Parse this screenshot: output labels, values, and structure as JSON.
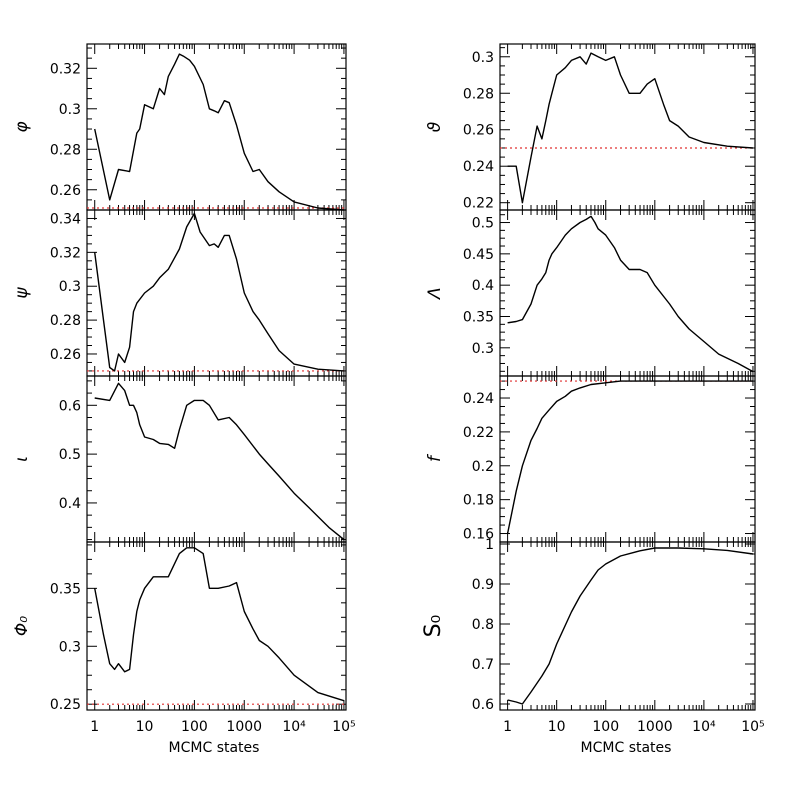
{
  "colors": {
    "series": "#000000",
    "reference": "#e03030",
    "axes": "#000000"
  },
  "chart_data": [
    {
      "type": "line",
      "id": "phi",
      "ylabel": "φ",
      "ylim": [
        0.25,
        0.332
      ],
      "yticks": [
        0.26,
        0.28,
        0.3,
        0.32
      ],
      "ytick_labels": [
        "0.26",
        "0.28",
        "0.3",
        "0.32"
      ],
      "reference_y": 0.251,
      "xscale": "log",
      "xlim": [
        0.7,
        110000
      ],
      "grid": false,
      "x": [
        1,
        2,
        3,
        5,
        7,
        8,
        10,
        15,
        20,
        25,
        30,
        40,
        50,
        60,
        80,
        100,
        150,
        200,
        250,
        300,
        400,
        500,
        700,
        1000,
        1500,
        2000,
        3000,
        5000,
        10000,
        30000,
        100000
      ],
      "y": [
        0.29,
        0.255,
        0.27,
        0.269,
        0.288,
        0.29,
        0.302,
        0.3,
        0.31,
        0.307,
        0.316,
        0.322,
        0.327,
        0.326,
        0.324,
        0.321,
        0.312,
        0.3,
        0.299,
        0.298,
        0.304,
        0.303,
        0.292,
        0.278,
        0.269,
        0.27,
        0.264,
        0.259,
        0.254,
        0.251,
        0.25
      ]
    },
    {
      "type": "line",
      "id": "psi",
      "ylabel": "ψ",
      "ylim": [
        0.247,
        0.345
      ],
      "yticks": [
        0.26,
        0.28,
        0.3,
        0.32,
        0.34
      ],
      "ytick_labels": [
        "0.26",
        "0.28",
        "0.3",
        "0.32",
        "0.34"
      ],
      "reference_y": 0.25,
      "xscale": "log",
      "xlim": [
        0.7,
        110000
      ],
      "grid": false,
      "x": [
        1,
        1.5,
        2,
        2.5,
        3,
        4,
        5,
        6,
        7,
        10,
        15,
        20,
        30,
        50,
        70,
        100,
        130,
        200,
        250,
        300,
        400,
        500,
        700,
        1000,
        1500,
        2000,
        3000,
        5000,
        10000,
        30000,
        100000
      ],
      "y": [
        0.32,
        0.28,
        0.252,
        0.25,
        0.26,
        0.255,
        0.264,
        0.285,
        0.29,
        0.296,
        0.3,
        0.305,
        0.31,
        0.322,
        0.335,
        0.343,
        0.332,
        0.324,
        0.325,
        0.323,
        0.33,
        0.33,
        0.316,
        0.296,
        0.285,
        0.28,
        0.272,
        0.262,
        0.254,
        0.251,
        0.25
      ]
    },
    {
      "type": "line",
      "id": "iota",
      "ylabel": "ι",
      "ylim": [
        0.32,
        0.66
      ],
      "yticks": [
        0.4,
        0.5,
        0.6
      ],
      "ytick_labels": [
        "0.4",
        "0.5",
        "0.6"
      ],
      "xscale": "log",
      "xlim": [
        0.7,
        110000
      ],
      "grid": false,
      "x": [
        1,
        2,
        3,
        4,
        5,
        6,
        7,
        8,
        10,
        15,
        20,
        30,
        40,
        50,
        70,
        100,
        150,
        200,
        300,
        500,
        700,
        1000,
        2000,
        3000,
        5000,
        10000,
        20000,
        50000,
        100000
      ],
      "y": [
        0.615,
        0.61,
        0.645,
        0.63,
        0.6,
        0.6,
        0.585,
        0.56,
        0.535,
        0.53,
        0.522,
        0.52,
        0.512,
        0.55,
        0.6,
        0.61,
        0.61,
        0.6,
        0.57,
        0.575,
        0.56,
        0.54,
        0.5,
        0.48,
        0.455,
        0.42,
        0.39,
        0.35,
        0.325
      ]
    },
    {
      "type": "line",
      "id": "Phi0",
      "ylabel": "Φ₀",
      "ylim": [
        0.245,
        0.39
      ],
      "yticks": [
        0.25,
        0.3,
        0.35
      ],
      "ytick_labels": [
        "0.25",
        "0.3",
        "0.35"
      ],
      "reference_y": 0.25,
      "xscale": "log",
      "xlim": [
        0.7,
        110000
      ],
      "grid": false,
      "x": [
        1,
        1.5,
        2,
        2.5,
        3,
        4,
        5,
        6,
        7,
        8,
        10,
        15,
        20,
        30,
        50,
        70,
        100,
        150,
        200,
        300,
        500,
        700,
        1000,
        1500,
        2000,
        3000,
        5000,
        10000,
        30000,
        100000
      ],
      "y": [
        0.35,
        0.31,
        0.285,
        0.28,
        0.285,
        0.278,
        0.28,
        0.31,
        0.33,
        0.34,
        0.35,
        0.36,
        0.36,
        0.36,
        0.38,
        0.385,
        0.385,
        0.38,
        0.35,
        0.35,
        0.352,
        0.355,
        0.33,
        0.315,
        0.305,
        0.3,
        0.29,
        0.275,
        0.26,
        0.253
      ]
    },
    {
      "type": "line",
      "id": "theta",
      "ylabel": "ϑ",
      "ylim": [
        0.216,
        0.307
      ],
      "yticks": [
        0.22,
        0.24,
        0.26,
        0.28,
        0.3
      ],
      "ytick_labels": [
        "0.22",
        "0.24",
        "0.26",
        "0.28",
        "0.3"
      ],
      "reference_y": 0.25,
      "xscale": "log",
      "xlim": [
        0.7,
        110000
      ],
      "grid": false,
      "x": [
        1,
        1.5,
        2,
        3,
        4,
        5,
        6,
        7,
        8,
        10,
        15,
        20,
        30,
        40,
        50,
        70,
        100,
        150,
        200,
        300,
        500,
        700,
        1000,
        1500,
        2000,
        3000,
        5000,
        10000,
        30000,
        100000
      ],
      "y": [
        0.24,
        0.24,
        0.22,
        0.245,
        0.262,
        0.255,
        0.265,
        0.274,
        0.28,
        0.29,
        0.294,
        0.298,
        0.3,
        0.296,
        0.302,
        0.3,
        0.298,
        0.3,
        0.29,
        0.28,
        0.28,
        0.285,
        0.288,
        0.274,
        0.265,
        0.262,
        0.256,
        0.253,
        0.251,
        0.25
      ]
    },
    {
      "type": "line",
      "id": "Lambda",
      "ylabel": "Λ",
      "ylim": [
        0.255,
        0.52
      ],
      "yticks": [
        0.3,
        0.35,
        0.4,
        0.45,
        0.5
      ],
      "ytick_labels": [
        "0.3",
        "0.35",
        "0.4",
        "0.45",
        "0.5"
      ],
      "xscale": "log",
      "xlim": [
        0.7,
        110000
      ],
      "grid": false,
      "x": [
        1,
        1.5,
        2,
        3,
        4,
        5,
        6,
        7,
        8,
        10,
        15,
        20,
        30,
        40,
        50,
        60,
        70,
        100,
        150,
        200,
        300,
        500,
        700,
        1000,
        2000,
        3000,
        5000,
        10000,
        20000,
        50000,
        100000
      ],
      "y": [
        0.34,
        0.342,
        0.345,
        0.37,
        0.4,
        0.41,
        0.42,
        0.44,
        0.45,
        0.46,
        0.48,
        0.49,
        0.5,
        0.505,
        0.51,
        0.5,
        0.49,
        0.48,
        0.46,
        0.44,
        0.425,
        0.425,
        0.42,
        0.4,
        0.37,
        0.35,
        0.33,
        0.31,
        0.29,
        0.275,
        0.262
      ]
    },
    {
      "type": "line",
      "id": "f",
      "ylabel": "f",
      "ylim": [
        0.155,
        0.253
      ],
      "yticks": [
        0.16,
        0.18,
        0.2,
        0.22,
        0.24
      ],
      "ytick_labels": [
        "0.16",
        "0.18",
        "0.2",
        "0.22",
        "0.24"
      ],
      "reference_y": 0.25,
      "xscale": "log",
      "xlim": [
        0.7,
        110000
      ],
      "grid": false,
      "x": [
        1,
        1.5,
        2,
        3,
        4,
        5,
        7,
        10,
        15,
        20,
        30,
        50,
        100,
        200,
        500,
        1000,
        3000,
        10000,
        30000,
        100000
      ],
      "y": [
        0.16,
        0.185,
        0.2,
        0.215,
        0.222,
        0.228,
        0.233,
        0.238,
        0.241,
        0.244,
        0.246,
        0.248,
        0.249,
        0.25,
        0.25,
        0.25,
        0.25,
        0.25,
        0.25,
        0.25
      ]
    },
    {
      "type": "line",
      "id": "S0",
      "ylabel": "S₀",
      "ylim": [
        0.585,
        1.005
      ],
      "yticks": [
        0.6,
        0.7,
        0.8,
        0.9,
        1
      ],
      "ytick_labels": [
        "0.6",
        "0.7",
        "0.8",
        "0.9",
        "1"
      ],
      "xscale": "log",
      "xlim": [
        0.7,
        110000
      ],
      "grid": false,
      "x": [
        1,
        1.5,
        2,
        3,
        5,
        7,
        10,
        20,
        30,
        50,
        70,
        100,
        200,
        500,
        1000,
        3000,
        10000,
        30000,
        100000
      ],
      "y": [
        0.61,
        0.605,
        0.6,
        0.63,
        0.67,
        0.7,
        0.75,
        0.83,
        0.87,
        0.91,
        0.935,
        0.95,
        0.97,
        0.983,
        0.99,
        0.99,
        0.988,
        0.984,
        0.975
      ]
    }
  ],
  "x_axis": {
    "label": "MCMC states",
    "ticks": [
      1,
      10,
      100,
      1000,
      10000,
      100000
    ],
    "tick_labels": [
      "1",
      "10",
      "100",
      "1000",
      "10⁴",
      "10⁵"
    ]
  }
}
